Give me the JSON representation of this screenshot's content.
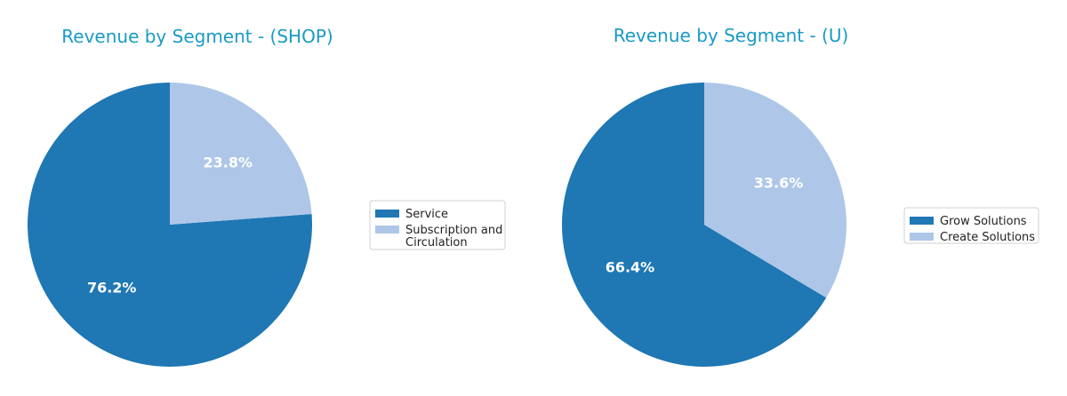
{
  "chart_data": [
    {
      "type": "pie",
      "title": "Revenue by Segment - (SHOP)",
      "slices": [
        {
          "label": "Service",
          "percent": 76.2,
          "percent_label": "76.2%",
          "color": "#1f77b4"
        },
        {
          "label": "Subscription and Circulation",
          "legend_lines": [
            "Subscription and",
            "Circulation"
          ],
          "percent": 23.8,
          "percent_label": "23.8%",
          "color": "#aec7e8"
        }
      ],
      "legend_position": "right"
    },
    {
      "type": "pie",
      "title": "Revenue by Segment - (U)",
      "slices": [
        {
          "label": "Grow Solutions",
          "percent": 66.4,
          "percent_label": "66.4%",
          "color": "#1f77b4"
        },
        {
          "label": "Create Solutions",
          "percent": 33.6,
          "percent_label": "33.6%",
          "color": "#aec7e8"
        }
      ],
      "legend_position": "right"
    }
  ],
  "colors": {
    "title": "#1a9bc5",
    "percent_label": "#ffffff"
  }
}
